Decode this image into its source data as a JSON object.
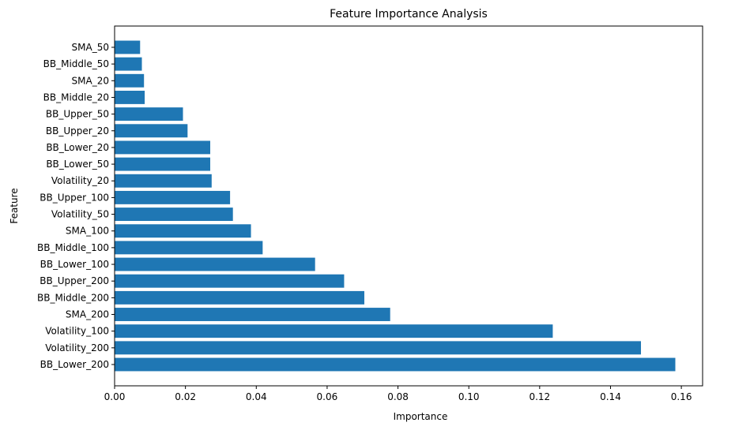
{
  "chart_data": {
    "type": "bar",
    "orientation": "horizontal",
    "title": "Feature Importance Analysis",
    "xlabel": "Importance",
    "ylabel": "Feature",
    "xlim": [
      0,
      0.166
    ],
    "xticks": [
      "0.00",
      "0.02",
      "0.04",
      "0.06",
      "0.08",
      "0.10",
      "0.12",
      "0.14",
      "0.16"
    ],
    "bar_color": "#1f77b4",
    "grid": false,
    "categories": [
      "BB_Lower_200",
      "Volatility_200",
      "Volatility_100",
      "SMA_200",
      "BB_Middle_200",
      "BB_Upper_200",
      "BB_Lower_100",
      "BB_Middle_100",
      "SMA_100",
      "Volatility_50",
      "BB_Upper_100",
      "Volatility_20",
      "BB_Lower_50",
      "BB_Lower_20",
      "BB_Upper_20",
      "BB_Upper_50",
      "BB_Middle_20",
      "SMA_20",
      "BB_Middle_50",
      "SMA_50"
    ],
    "values": [
      0.1583,
      0.1486,
      0.1237,
      0.0778,
      0.0705,
      0.0648,
      0.0566,
      0.0418,
      0.0385,
      0.0334,
      0.0326,
      0.0274,
      0.027,
      0.027,
      0.0206,
      0.0193,
      0.0085,
      0.0083,
      0.0077,
      0.0072
    ]
  }
}
